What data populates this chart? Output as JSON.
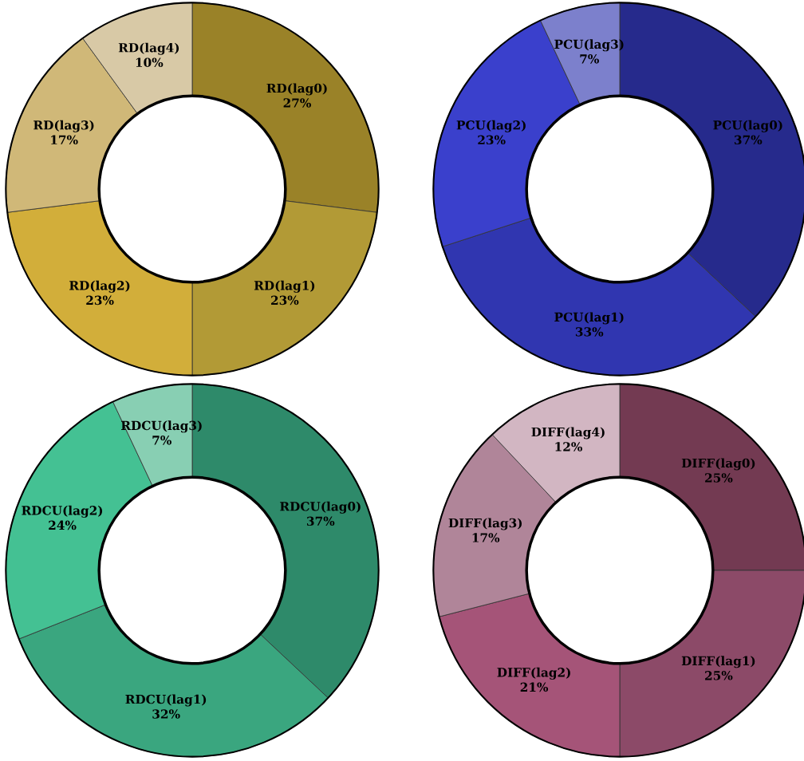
{
  "chart_data": [
    {
      "type": "donut",
      "categories": [
        "RD(lag0)",
        "RD(lag1)",
        "RD(lag2)",
        "RD(lag3)",
        "RD(lag4)"
      ],
      "values": [
        27,
        23,
        23,
        17,
        10
      ],
      "value_labels": [
        "27%",
        "23%",
        "23%",
        "17%",
        "10%"
      ],
      "colors": [
        "#9a8228",
        "#b29a36",
        "#d2ae3a",
        "#d0b878",
        "#d8c9a6"
      ]
    },
    {
      "type": "donut",
      "categories": [
        "PCU(lag0)",
        "PCU(lag1)",
        "PCU(lag2)",
        "PCU(lag3)"
      ],
      "values": [
        37,
        33,
        23,
        7
      ],
      "value_labels": [
        "37%",
        "33%",
        "23%",
        "7%"
      ],
      "colors": [
        "#262a8c",
        "#3036b0",
        "#3a40cc",
        "#7c80cc"
      ]
    },
    {
      "type": "donut",
      "categories": [
        "RDCU(lag0)",
        "RDCU(lag1)",
        "RDCU(lag2)",
        "RDCU(lag3)"
      ],
      "values": [
        37,
        32,
        24,
        7
      ],
      "value_labels": [
        "37%",
        "32%",
        "24%",
        "7%"
      ],
      "colors": [
        "#2e8a6a",
        "#3aa67f",
        "#44c193",
        "#88cfb3"
      ]
    },
    {
      "type": "donut",
      "categories": [
        "DIFF(lag0)",
        "DIFF(lag1)",
        "DIFF(lag2)",
        "DIFF(lag3)",
        "DIFF(lag4)"
      ],
      "values": [
        25,
        25,
        21,
        17,
        12
      ],
      "value_labels": [
        "25%",
        "25%",
        "21%",
        "17%",
        "12%"
      ],
      "colors": [
        "#733a52",
        "#8c4a68",
        "#a55478",
        "#b08599",
        "#d2b6c2"
      ]
    }
  ]
}
